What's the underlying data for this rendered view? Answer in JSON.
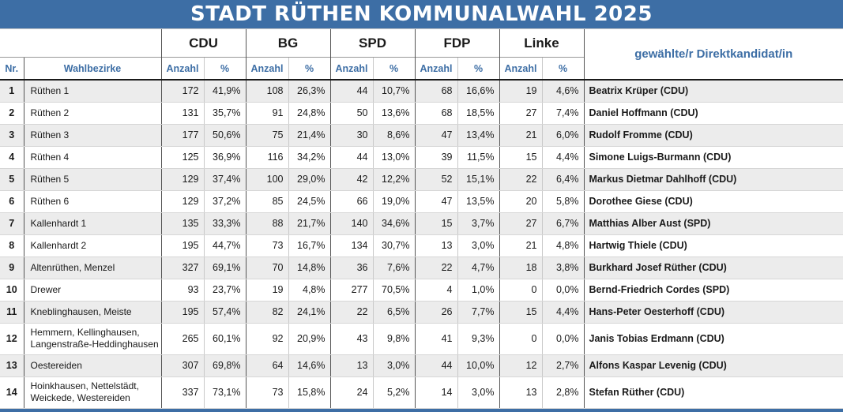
{
  "title": "STADT RÜTHEN KOMMUNALWAHL 2025",
  "header": {
    "parties": [
      "CDU",
      "BG",
      "SPD",
      "FDP",
      "Linke"
    ],
    "nr_label": "Nr.",
    "district_label": "Wahlbezirke",
    "count_label": "Anzahl",
    "pct_label": "%",
    "candidate_label": "gewählte/r Direktkandidat/in"
  },
  "rows": [
    {
      "nr": "1",
      "district": "Rüthen 1",
      "cdu": "172",
      "cdu_p": "41,9%",
      "bg": "108",
      "bg_p": "26,3%",
      "spd": "44",
      "spd_p": "10,7%",
      "fdp": "68",
      "fdp_p": "16,6%",
      "linke": "19",
      "linke_p": "4,6%",
      "candidate": "Beatrix Krüper (CDU)"
    },
    {
      "nr": "2",
      "district": "Rüthen 2",
      "cdu": "131",
      "cdu_p": "35,7%",
      "bg": "91",
      "bg_p": "24,8%",
      "spd": "50",
      "spd_p": "13,6%",
      "fdp": "68",
      "fdp_p": "18,5%",
      "linke": "27",
      "linke_p": "7,4%",
      "candidate": "Daniel Hoffmann (CDU)"
    },
    {
      "nr": "3",
      "district": "Rüthen 3",
      "cdu": "177",
      "cdu_p": "50,6%",
      "bg": "75",
      "bg_p": "21,4%",
      "spd": "30",
      "spd_p": "8,6%",
      "fdp": "47",
      "fdp_p": "13,4%",
      "linke": "21",
      "linke_p": "6,0%",
      "candidate": "Rudolf Fromme (CDU)"
    },
    {
      "nr": "4",
      "district": "Rüthen 4",
      "cdu": "125",
      "cdu_p": "36,9%",
      "bg": "116",
      "bg_p": "34,2%",
      "spd": "44",
      "spd_p": "13,0%",
      "fdp": "39",
      "fdp_p": "11,5%",
      "linke": "15",
      "linke_p": "4,4%",
      "candidate": "Simone Luigs-Burmann (CDU)"
    },
    {
      "nr": "5",
      "district": "Rüthen 5",
      "cdu": "129",
      "cdu_p": "37,4%",
      "bg": "100",
      "bg_p": "29,0%",
      "spd": "42",
      "spd_p": "12,2%",
      "fdp": "52",
      "fdp_p": "15,1%",
      "linke": "22",
      "linke_p": "6,4%",
      "candidate": "Markus Dietmar Dahlhoff (CDU)"
    },
    {
      "nr": "6",
      "district": "Rüthen 6",
      "cdu": "129",
      "cdu_p": "37,2%",
      "bg": "85",
      "bg_p": "24,5%",
      "spd": "66",
      "spd_p": "19,0%",
      "fdp": "47",
      "fdp_p": "13,5%",
      "linke": "20",
      "linke_p": "5,8%",
      "candidate": "Dorothee Giese (CDU)"
    },
    {
      "nr": "7",
      "district": "Kallenhardt 1",
      "cdu": "135",
      "cdu_p": "33,3%",
      "bg": "88",
      "bg_p": "21,7%",
      "spd": "140",
      "spd_p": "34,6%",
      "fdp": "15",
      "fdp_p": "3,7%",
      "linke": "27",
      "linke_p": "6,7%",
      "candidate": "Matthias Alber Aust (SPD)"
    },
    {
      "nr": "8",
      "district": "Kallenhardt 2",
      "cdu": "195",
      "cdu_p": "44,7%",
      "bg": "73",
      "bg_p": "16,7%",
      "spd": "134",
      "spd_p": "30,7%",
      "fdp": "13",
      "fdp_p": "3,0%",
      "linke": "21",
      "linke_p": "4,8%",
      "candidate": "Hartwig Thiele (CDU)"
    },
    {
      "nr": "9",
      "district": "Altenrüthen, Menzel",
      "cdu": "327",
      "cdu_p": "69,1%",
      "bg": "70",
      "bg_p": "14,8%",
      "spd": "36",
      "spd_p": "7,6%",
      "fdp": "22",
      "fdp_p": "4,7%",
      "linke": "18",
      "linke_p": "3,8%",
      "candidate": "Burkhard Josef Rüther (CDU)"
    },
    {
      "nr": "10",
      "district": "Drewer",
      "cdu": "93",
      "cdu_p": "23,7%",
      "bg": "19",
      "bg_p": "4,8%",
      "spd": "277",
      "spd_p": "70,5%",
      "fdp": "4",
      "fdp_p": "1,0%",
      "linke": "0",
      "linke_p": "0,0%",
      "candidate": "Bernd-Friedrich Cordes (SPD)"
    },
    {
      "nr": "11",
      "district": "Kneblinghausen, Meiste",
      "cdu": "195",
      "cdu_p": "57,4%",
      "bg": "82",
      "bg_p": "24,1%",
      "spd": "22",
      "spd_p": "6,5%",
      "fdp": "26",
      "fdp_p": "7,7%",
      "linke": "15",
      "linke_p": "4,4%",
      "candidate": "Hans-Peter Oesterhoff (CDU)"
    },
    {
      "nr": "12",
      "district": "Hemmern, Kellinghausen, Langenstraße-Heddinghausen",
      "cdu": "265",
      "cdu_p": "60,1%",
      "bg": "92",
      "bg_p": "20,9%",
      "spd": "43",
      "spd_p": "9,8%",
      "fdp": "41",
      "fdp_p": "9,3%",
      "linke": "0",
      "linke_p": "0,0%",
      "candidate": "Janis Tobias Erdmann (CDU)"
    },
    {
      "nr": "13",
      "district": "Oestereiden",
      "cdu": "307",
      "cdu_p": "69,8%",
      "bg": "64",
      "bg_p": "14,6%",
      "spd": "13",
      "spd_p": "3,0%",
      "fdp": "44",
      "fdp_p": "10,0%",
      "linke": "12",
      "linke_p": "2,7%",
      "candidate": "Alfons Kaspar Levenig (CDU)"
    },
    {
      "nr": "14",
      "district": "Hoinkhausen, Nettelstädt, Weickede, Westereiden",
      "cdu": "337",
      "cdu_p": "73,1%",
      "bg": "73",
      "bg_p": "15,8%",
      "spd": "24",
      "spd_p": "5,2%",
      "fdp": "14",
      "fdp_p": "3,0%",
      "linke": "13",
      "linke_p": "2,8%",
      "candidate": "Stefan Rüther (CDU)"
    }
  ],
  "colors": {
    "brand_blue": "#3d6ea5",
    "row_shade": "#ececec"
  }
}
